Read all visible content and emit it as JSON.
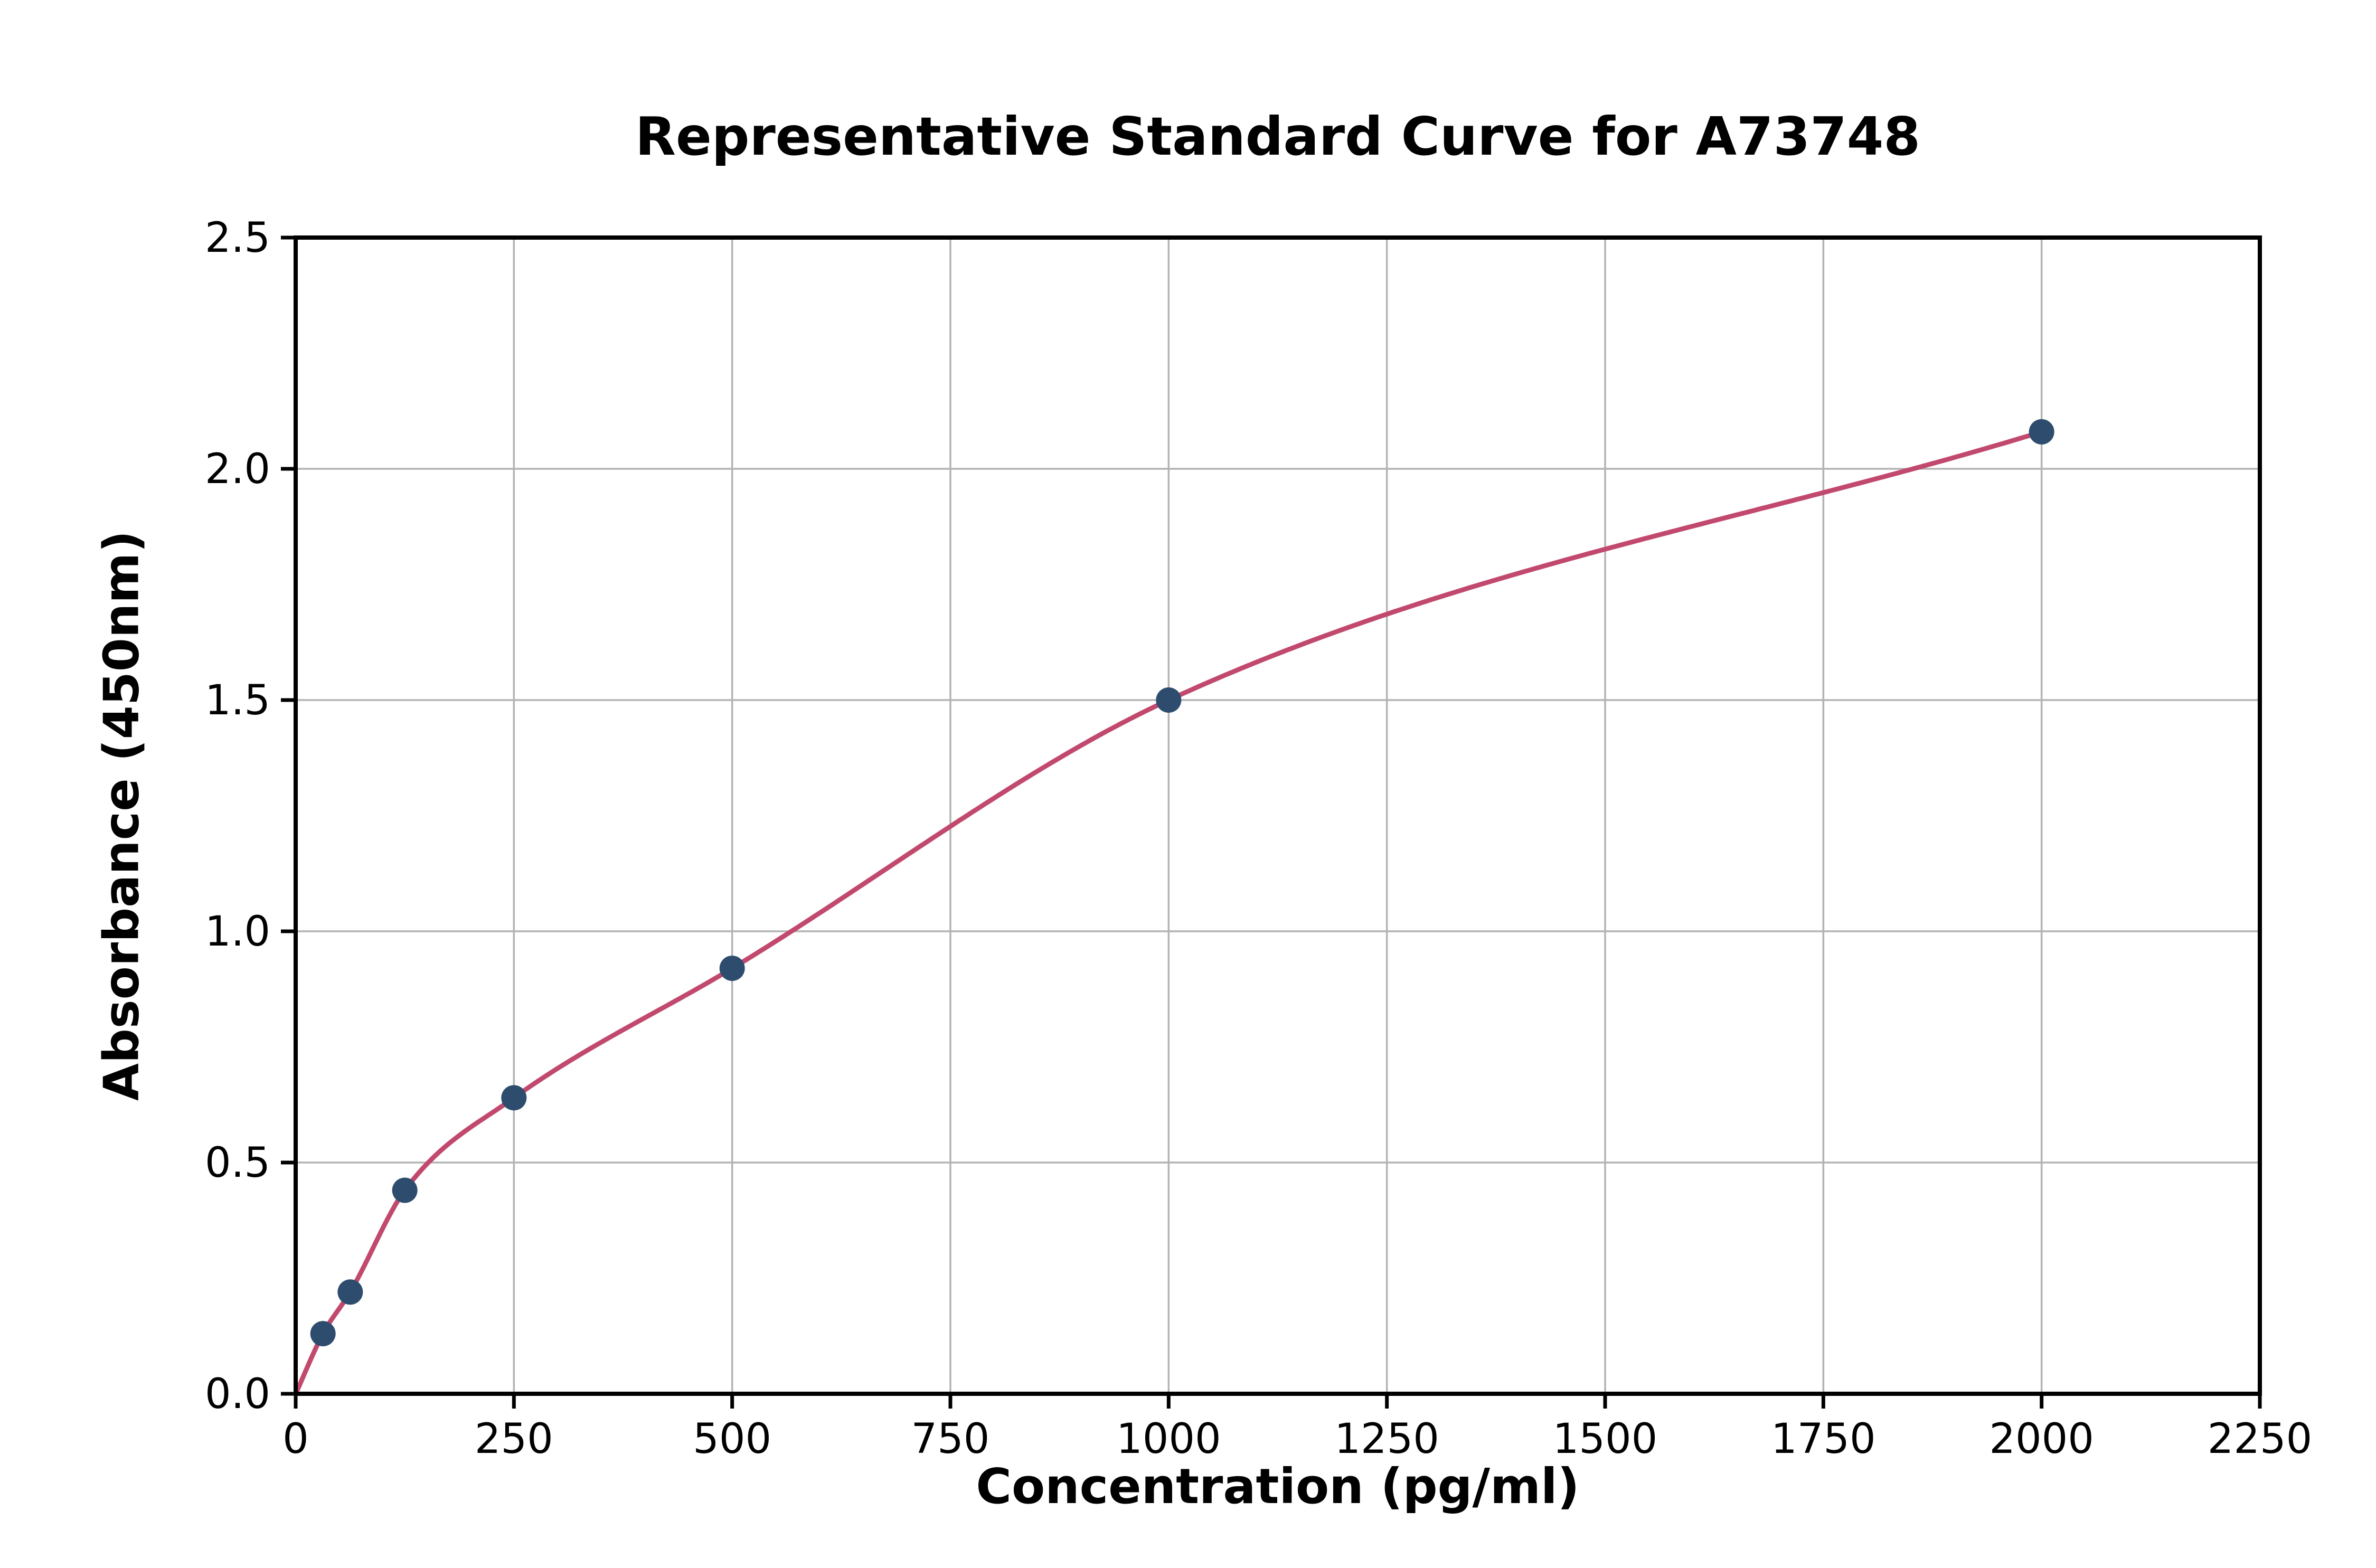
{
  "chart_data": {
    "type": "scatter",
    "title": "Representative Standard Curve for A73748",
    "xlabel": "Concentration (pg/ml)",
    "ylabel": "Absorbance (450nm)",
    "xlim": [
      0,
      2250
    ],
    "ylim": [
      0,
      2.5
    ],
    "grid": true,
    "legend": "none",
    "xticks": {
      "values": [
        0,
        250,
        500,
        750,
        1000,
        1250,
        1500,
        1750,
        2000,
        2250
      ],
      "labels": [
        "0",
        "250",
        "500",
        "750",
        "1000",
        "1250",
        "1500",
        "1750",
        "2000",
        "2250"
      ]
    },
    "yticks": {
      "values": [
        0,
        0.5,
        1.0,
        1.5,
        2.0,
        2.5
      ],
      "labels": [
        "0.0",
        "0.5",
        "1.0",
        "1.5",
        "2.0",
        "2.5"
      ]
    },
    "points": {
      "x": [
        31.25,
        62.5,
        125,
        250,
        500,
        1000,
        2000
      ],
      "y": [
        0.13,
        0.22,
        0.44,
        0.64,
        0.92,
        1.5,
        2.08
      ]
    },
    "curve": {
      "x": [
        0,
        31.25,
        62.5,
        125,
        250,
        500,
        1000,
        2000
      ],
      "y": [
        0,
        0.13,
        0.22,
        0.44,
        0.64,
        0.92,
        1.5,
        2.08
      ]
    },
    "colors": {
      "points": "#2e4d6e",
      "curve": "#c2496e",
      "grid": "#b3b3b3",
      "axis": "#000000",
      "background": "#ffffff"
    }
  }
}
